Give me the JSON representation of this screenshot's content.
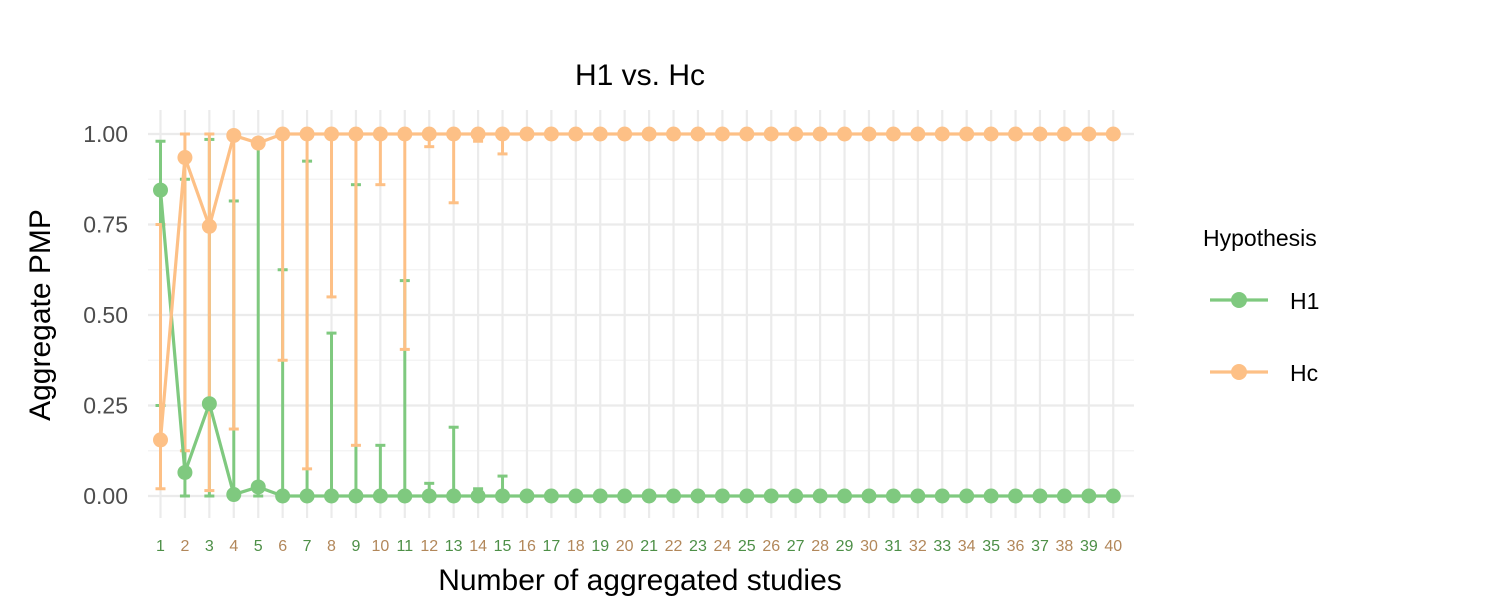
{
  "chart_data": {
    "type": "line",
    "title": "H1 vs. Hc",
    "xlabel": "Number of aggregated studies",
    "ylabel": "Aggregate PMP",
    "ylim": [
      0,
      1
    ],
    "yticks": [
      "0.00",
      "0.25",
      "0.50",
      "0.75",
      "1.00"
    ],
    "ytick_values": [
      0,
      0.25,
      0.5,
      0.75,
      1.0
    ],
    "x": [
      "1",
      "2",
      "3",
      "4",
      "5",
      "6",
      "7",
      "8",
      "9",
      "10",
      "11",
      "12",
      "13",
      "14",
      "15",
      "16",
      "17",
      "18",
      "19",
      "20",
      "21",
      "22",
      "23",
      "24",
      "25",
      "26",
      "27",
      "28",
      "29",
      "30",
      "31",
      "32",
      "33",
      "34",
      "35",
      "36",
      "37",
      "38",
      "39",
      "40"
    ],
    "xtick_colors": [
      "#4d8f47",
      "#b2875a"
    ],
    "grid": true,
    "legend": {
      "title": "Hypothesis",
      "placement": "right"
    },
    "series": [
      {
        "name": "H1",
        "color": "#7fc97f",
        "values": [
          0.845,
          0.065,
          0.255,
          0.004,
          0.025,
          0,
          0,
          0,
          0,
          0,
          0,
          0,
          0,
          0,
          0,
          0,
          0,
          0,
          0,
          0,
          0,
          0,
          0,
          0,
          0,
          0,
          0,
          0,
          0,
          0,
          0,
          0,
          0,
          0,
          0,
          0,
          0,
          0,
          0,
          0
        ],
        "lower": [
          0.25,
          0,
          0,
          0,
          0,
          0,
          0,
          0,
          0,
          0,
          0,
          0,
          0,
          0,
          0,
          0,
          0,
          0,
          0,
          0,
          0,
          0,
          0,
          0,
          0,
          0,
          0,
          0,
          0,
          0,
          0,
          0,
          0,
          0,
          0,
          0,
          0,
          0,
          0,
          0
        ],
        "upper": [
          0.98,
          0.875,
          0.985,
          0.815,
          0.975,
          0.625,
          0.925,
          0.45,
          0.86,
          0.14,
          0.595,
          0.035,
          0.19,
          0.02,
          0.055,
          0,
          0,
          0,
          0,
          0,
          0,
          0,
          0,
          0,
          0,
          0,
          0,
          0,
          0,
          0,
          0,
          0,
          0,
          0,
          0,
          0,
          0,
          0,
          0,
          0
        ]
      },
      {
        "name": "Hc",
        "color": "#fdc086",
        "values": [
          0.155,
          0.935,
          0.745,
          0.996,
          0.975,
          1,
          1,
          1,
          1,
          1,
          1,
          1,
          1,
          1,
          1,
          1,
          1,
          1,
          1,
          1,
          1,
          1,
          1,
          1,
          1,
          1,
          1,
          1,
          1,
          1,
          1,
          1,
          1,
          1,
          1,
          1,
          1,
          1,
          1,
          1
        ],
        "lower": [
          0.02,
          0.125,
          0.015,
          0.185,
          1,
          0.375,
          0.075,
          0.55,
          0.14,
          0.86,
          0.405,
          0.965,
          0.81,
          0.98,
          0.945,
          1,
          1,
          1,
          1,
          1,
          1,
          1,
          1,
          1,
          1,
          1,
          1,
          1,
          1,
          1,
          1,
          1,
          1,
          1,
          1,
          1,
          1,
          1,
          1,
          1
        ],
        "upper": [
          0.75,
          1,
          1,
          1,
          1,
          1,
          1,
          1,
          1,
          1,
          1,
          1,
          1,
          1,
          1,
          1,
          1,
          1,
          1,
          1,
          1,
          1,
          1,
          1,
          1,
          1,
          1,
          1,
          1,
          1,
          1,
          1,
          1,
          1,
          1,
          1,
          1,
          1,
          1,
          1
        ]
      }
    ]
  }
}
